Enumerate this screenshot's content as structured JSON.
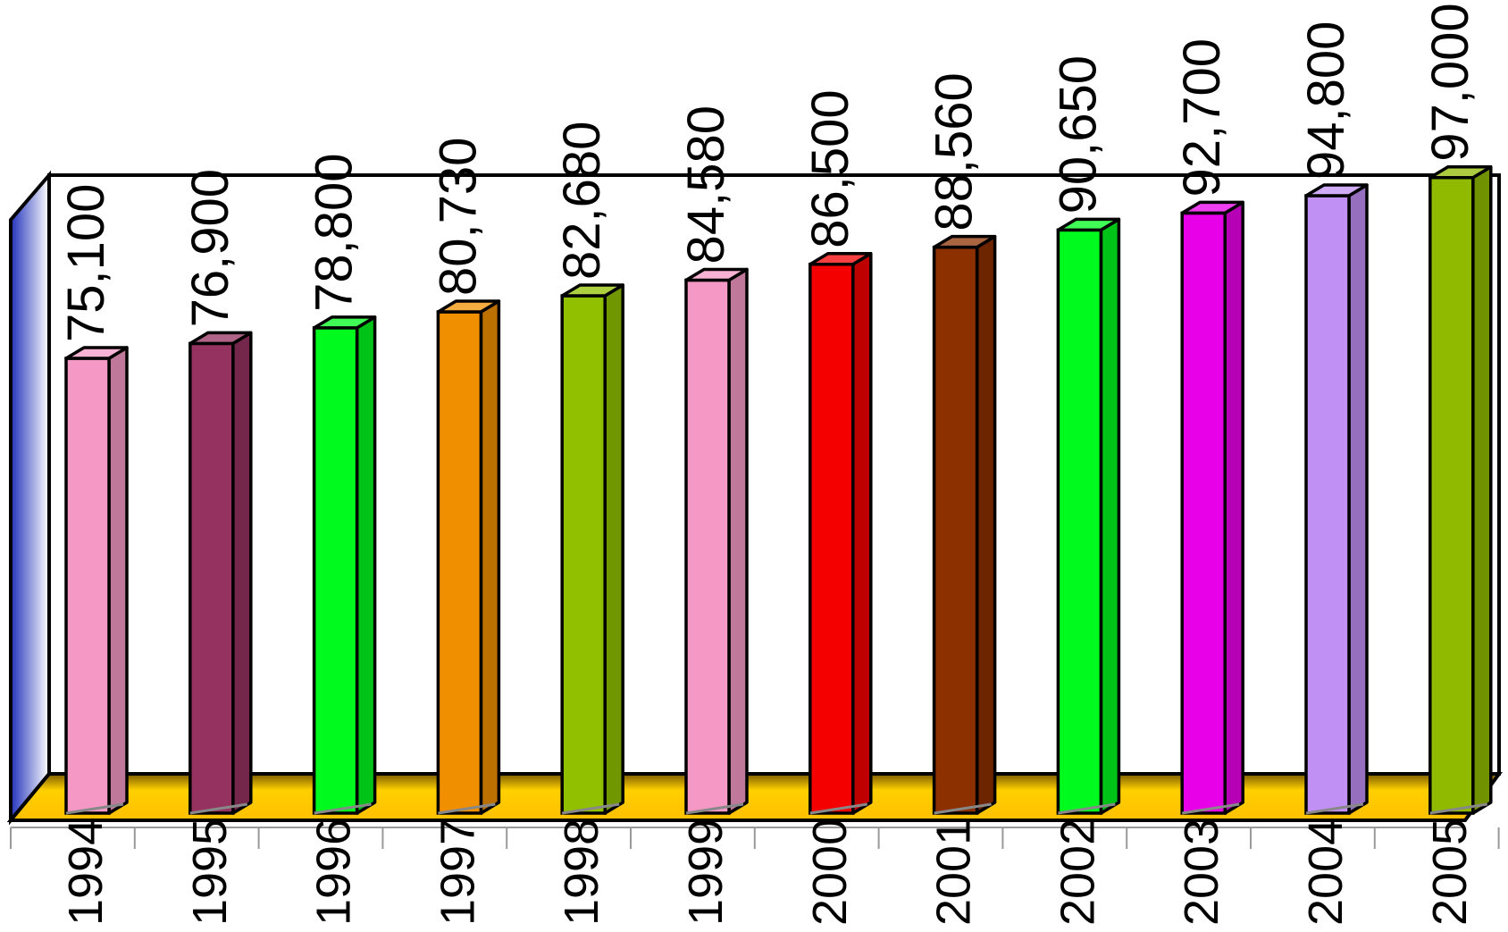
{
  "chart_data": {
    "type": "bar",
    "style": "3d-column",
    "categories": [
      "1994",
      "1995",
      "1996",
      "1997",
      "1998",
      "1999",
      "2000",
      "2001",
      "2002",
      "2003",
      "2004",
      "2005"
    ],
    "values": [
      75100,
      76900,
      78800,
      80730,
      82680,
      84580,
      86500,
      88560,
      90650,
      92700,
      94800,
      97000
    ],
    "value_labels": [
      "75,100",
      "76,900",
      "78,800",
      "80,730",
      "82,680",
      "84,580",
      "86,500",
      "88,560",
      "90,650",
      "92,700",
      "94,800",
      "97,000"
    ],
    "bar_colors": [
      "#F598C6",
      "#963260",
      "#00FA1E",
      "#F09000",
      "#90C000",
      "#F598C6",
      "#F50000",
      "#8C3000",
      "#00FA1E",
      "#E800E8",
      "#C090F4",
      "#90BA00"
    ],
    "ylim": [
      20000,
      100000
    ],
    "grid": false,
    "legend": "none",
    "floor_color": "#FFCC00",
    "wall_color": "#3344CC"
  }
}
